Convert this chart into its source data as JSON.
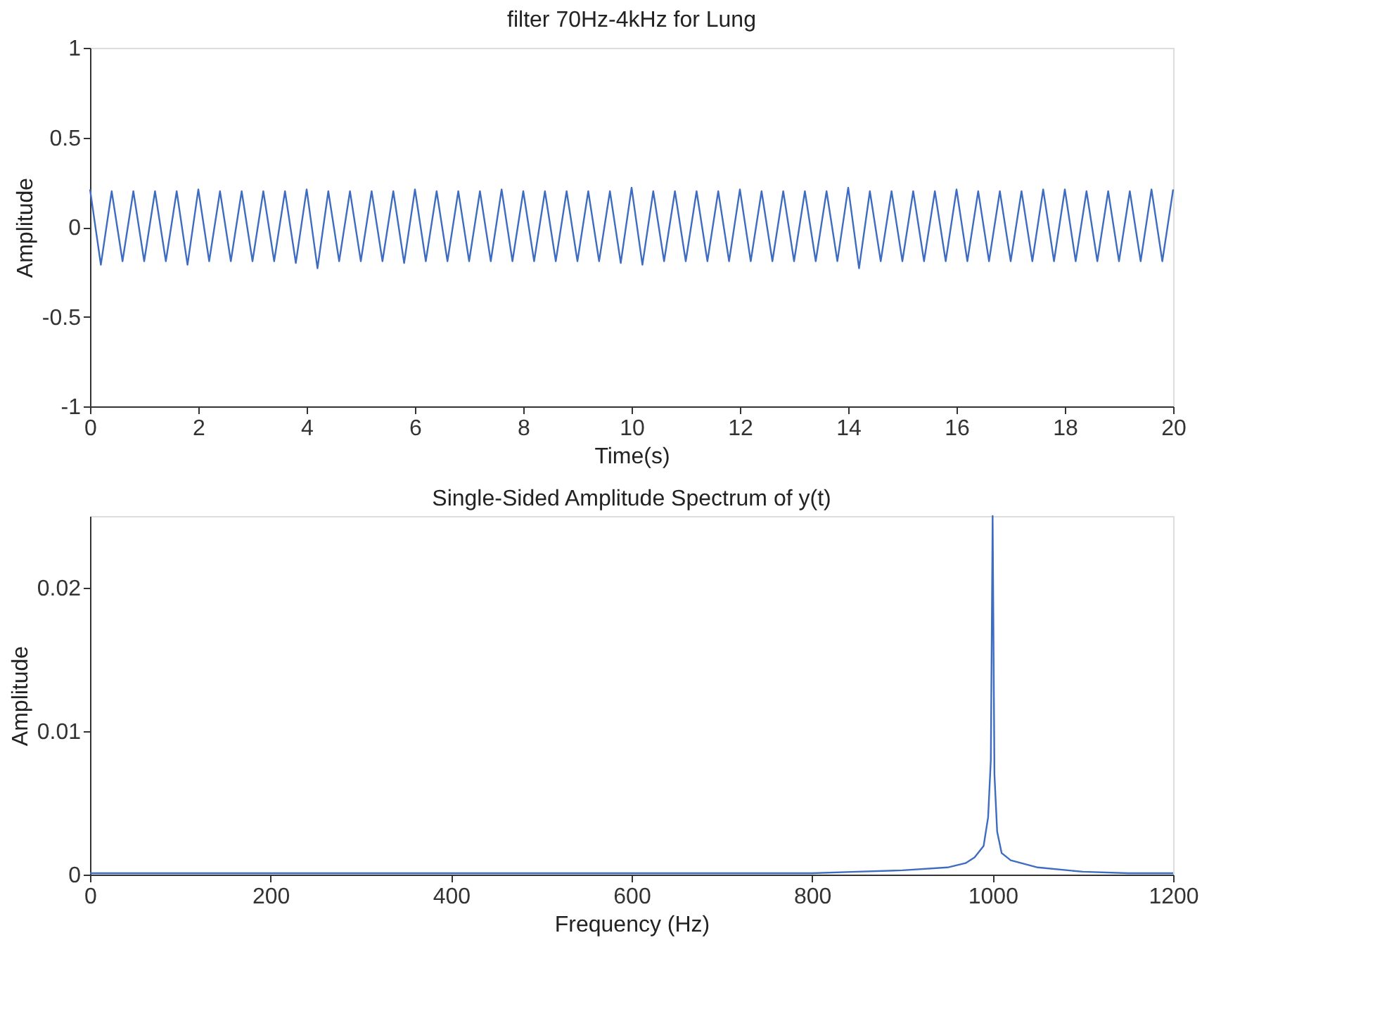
{
  "chart_data": [
    {
      "type": "line",
      "title": "filter 70Hz-4kHz for Lung",
      "xlabel": "Time(s)",
      "ylabel": "Amplitude",
      "xlim": [
        0,
        20
      ],
      "xticks": [
        0,
        2,
        4,
        6,
        8,
        10,
        12,
        14,
        16,
        18,
        20
      ],
      "ylim": [
        -1,
        1
      ],
      "yticks": [
        -1,
        -0.5,
        0,
        0.5,
        1
      ],
      "grid": false,
      "x": [
        0,
        0.2,
        0.4,
        0.6,
        0.8,
        1,
        1.2,
        1.4,
        1.6,
        1.8,
        2,
        2.2,
        2.4,
        2.6,
        2.8,
        3,
        3.2,
        3.4,
        3.6,
        3.8,
        4,
        4.2,
        4.4,
        4.6,
        4.8,
        5,
        5.2,
        5.4,
        5.6,
        5.8,
        6,
        6.2,
        6.4,
        6.6,
        6.8,
        7,
        7.2,
        7.4,
        7.6,
        7.8,
        8,
        8.2,
        8.4,
        8.6,
        8.8,
        9,
        9.2,
        9.4,
        9.6,
        9.8,
        10,
        10.2,
        10.4,
        10.6,
        10.8,
        11,
        11.2,
        11.4,
        11.6,
        11.8,
        12,
        12.2,
        12.4,
        12.6,
        12.8,
        13,
        13.2,
        13.4,
        13.6,
        13.8,
        14,
        14.2,
        14.4,
        14.6,
        14.8,
        15,
        15.2,
        15.4,
        15.6,
        15.8,
        16,
        16.2,
        16.4,
        16.6,
        16.8,
        17,
        17.2,
        17.4,
        17.6,
        17.8,
        18,
        18.2,
        18.4,
        18.6,
        18.8,
        19,
        19.2,
        19.4,
        19.6,
        19.8,
        20
      ],
      "series": [
        {
          "color": "#3e6cc0",
          "values": [
            0.21,
            -0.21,
            0.2,
            -0.19,
            0.2,
            -0.19,
            0.2,
            -0.19,
            0.2,
            -0.21,
            0.21,
            -0.19,
            0.2,
            -0.19,
            0.2,
            -0.19,
            0.2,
            -0.19,
            0.2,
            -0.2,
            0.21,
            -0.23,
            0.2,
            -0.19,
            0.2,
            -0.19,
            0.2,
            -0.19,
            0.2,
            -0.2,
            0.21,
            -0.19,
            0.2,
            -0.19,
            0.2,
            -0.19,
            0.2,
            -0.19,
            0.21,
            -0.19,
            0.2,
            -0.19,
            0.2,
            -0.19,
            0.2,
            -0.19,
            0.2,
            -0.19,
            0.2,
            -0.2,
            0.22,
            -0.21,
            0.2,
            -0.19,
            0.2,
            -0.19,
            0.2,
            -0.19,
            0.2,
            -0.19,
            0.21,
            -0.19,
            0.2,
            -0.19,
            0.2,
            -0.19,
            0.2,
            -0.19,
            0.2,
            -0.19,
            0.22,
            -0.23,
            0.2,
            -0.19,
            0.2,
            -0.19,
            0.2,
            -0.19,
            0.2,
            -0.19,
            0.21,
            -0.19,
            0.2,
            -0.19,
            0.2,
            -0.19,
            0.2,
            -0.19,
            0.21,
            -0.19,
            0.21,
            -0.19,
            0.2,
            -0.19,
            0.2,
            -0.19,
            0.2,
            -0.19,
            0.21,
            -0.19,
            0.21
          ]
        }
      ]
    },
    {
      "type": "line",
      "title": "Single-Sided Amplitude Spectrum of y(t)",
      "xlabel": "Frequency (Hz)",
      "ylabel": "Amplitude",
      "xlim": [
        0,
        1200
      ],
      "xticks": [
        0,
        200,
        400,
        600,
        800,
        1000,
        1200
      ],
      "ylim": [
        0,
        0.025
      ],
      "yticks": [
        0,
        0.01,
        0.02
      ],
      "grid": false,
      "x": [
        0,
        100,
        200,
        300,
        400,
        500,
        600,
        700,
        800,
        850,
        900,
        950,
        970,
        980,
        990,
        995,
        998,
        1000,
        1002,
        1005,
        1010,
        1020,
        1050,
        1100,
        1150,
        1200
      ],
      "series": [
        {
          "color": "#3e6cc0",
          "values": [
            0.0001,
            0.0001,
            0.0001,
            0.0001,
            0.0001,
            0.0001,
            0.0001,
            0.0001,
            0.0001,
            0.0002,
            0.0003,
            0.0005,
            0.0008,
            0.0012,
            0.002,
            0.004,
            0.008,
            0.025,
            0.007,
            0.003,
            0.0015,
            0.001,
            0.0005,
            0.0002,
            0.0001,
            0.0001
          ]
        }
      ]
    }
  ]
}
